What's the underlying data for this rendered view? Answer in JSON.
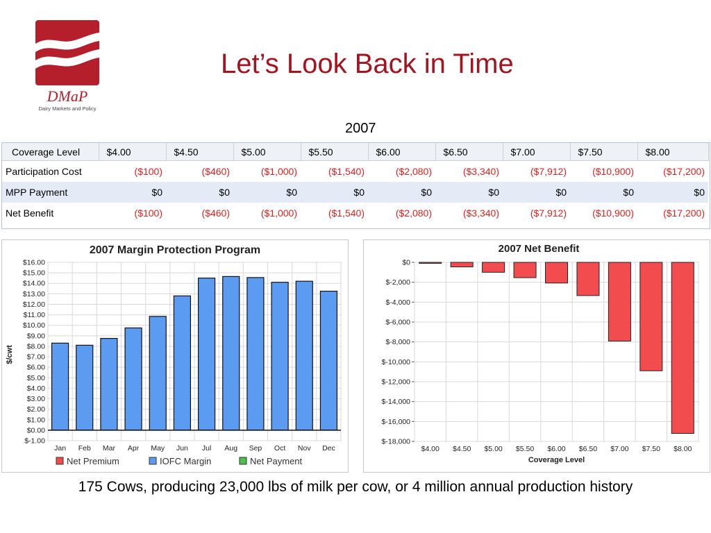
{
  "slide": {
    "title": "Let’s Look Back in Time",
    "year": "2007",
    "caption": "175 Cows, producing 23,000 lbs of milk per cow, or 4 million annual production history",
    "logo_text": "DMaP",
    "logo_subtext": "Dairy Markets and Policy"
  },
  "colors": {
    "title": "#a3141f",
    "negative": "#e0201e",
    "iofc_bar": "#5b9cf2",
    "net_premium": "#f24c4e",
    "net_payment": "#4cc24c"
  },
  "table": {
    "headers": [
      "Coverage Level",
      "$4.00",
      "$4.50",
      "$5.00",
      "$5.50",
      "$6.00",
      "$6.50",
      "$7.00",
      "$7.50",
      "$8.00"
    ],
    "rows": [
      {
        "label": "Participation Cost",
        "cells": [
          "($100)",
          "($460)",
          "($1,000)",
          "($1,540)",
          "($2,080)",
          "($3,340)",
          "($7,912)",
          "($10,900)",
          "($17,200)"
        ],
        "negative": true
      },
      {
        "label": "MPP Payment",
        "cells": [
          "$0",
          "$0",
          "$0",
          "$0",
          "$0",
          "$0",
          "$0",
          "$0",
          "$0"
        ],
        "negative": false
      },
      {
        "label": "Net Benefit",
        "cells": [
          "($100)",
          "($460)",
          "($1,000)",
          "($1,540)",
          "($2,080)",
          "($3,340)",
          "($7,912)",
          "($10,900)",
          "($17,200)"
        ],
        "negative": true
      }
    ]
  },
  "chart_data": [
    {
      "type": "bar",
      "title": "2007 Margin Protection Program",
      "xlabel": "",
      "ylabel": "$/cwt",
      "categories": [
        "Jan",
        "Feb",
        "Mar",
        "Apr",
        "May",
        "Jun",
        "Jul",
        "Aug",
        "Sep",
        "Oct",
        "Nov",
        "Dec"
      ],
      "series": [
        {
          "name": "Net Premium",
          "values": [
            0,
            0,
            0,
            0,
            0,
            0,
            0,
            0,
            0,
            0,
            0,
            0
          ]
        },
        {
          "name": "IOFC Margin",
          "values": [
            8.3,
            8.1,
            8.75,
            9.75,
            10.85,
            12.8,
            14.5,
            14.65,
            14.55,
            14.1,
            14.2,
            13.25
          ]
        },
        {
          "name": "Net Payment",
          "values": [
            0,
            0,
            0,
            0,
            0,
            0,
            0,
            0,
            0,
            0,
            0,
            0
          ]
        }
      ],
      "ylim": [
        -1,
        16
      ],
      "yticks": [
        "$-1.00",
        "$0.00",
        "$1.00",
        "$2.00",
        "$3.00",
        "$4.00",
        "$5.00",
        "$6.00",
        "$7.00",
        "$8.00",
        "$9.00",
        "$10.00",
        "$11.00",
        "$12.00",
        "$13.00",
        "$14.00",
        "$15.00",
        "$16.00"
      ],
      "grid": true,
      "legend": "bottom"
    },
    {
      "type": "bar",
      "title": "2007 Net Benefit",
      "xlabel": "Coverage Level",
      "ylabel": "",
      "categories": [
        "$4.00",
        "$4.50",
        "$5.00",
        "$5.50",
        "$6.00",
        "$6.50",
        "$7.00",
        "$7.50",
        "$8.00"
      ],
      "values": [
        -100,
        -460,
        -1000,
        -1540,
        -2080,
        -3340,
        -7912,
        -10900,
        -17200
      ],
      "ylim": [
        -18000,
        0
      ],
      "yticks": [
        "$0",
        "$-2,000",
        "$-4,000",
        "$-6,000",
        "$-8,000",
        "$-10,000",
        "$-12,000",
        "$-14,000",
        "$-16,000",
        "$-18,000"
      ],
      "grid": true
    }
  ]
}
